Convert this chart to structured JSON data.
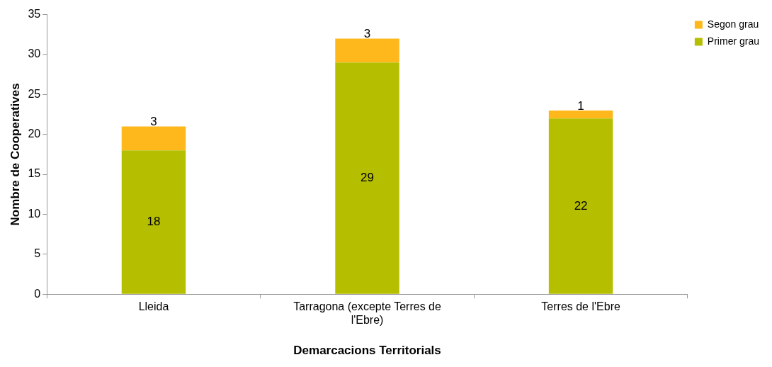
{
  "chart_data": {
    "type": "bar",
    "stacked": true,
    "xlabel": "Demarcacions Territorials",
    "ylabel": "Nombre de Cooperatives",
    "categories": [
      "Lleida",
      "Tarragona (excepte Terres de l'Ebre)",
      "Terres de l'Ebre"
    ],
    "series": [
      {
        "name": "Primer grau",
        "color": "#b5bf00",
        "values": [
          18,
          29,
          22
        ]
      },
      {
        "name": "Segon grau",
        "color": "#ffb81c",
        "values": [
          3,
          3,
          1
        ]
      }
    ],
    "ylim": [
      0,
      35
    ],
    "yticks": [
      0,
      5,
      10,
      15,
      20,
      25,
      30,
      35
    ],
    "grid": false,
    "legend": "top right",
    "data_labels": true
  }
}
